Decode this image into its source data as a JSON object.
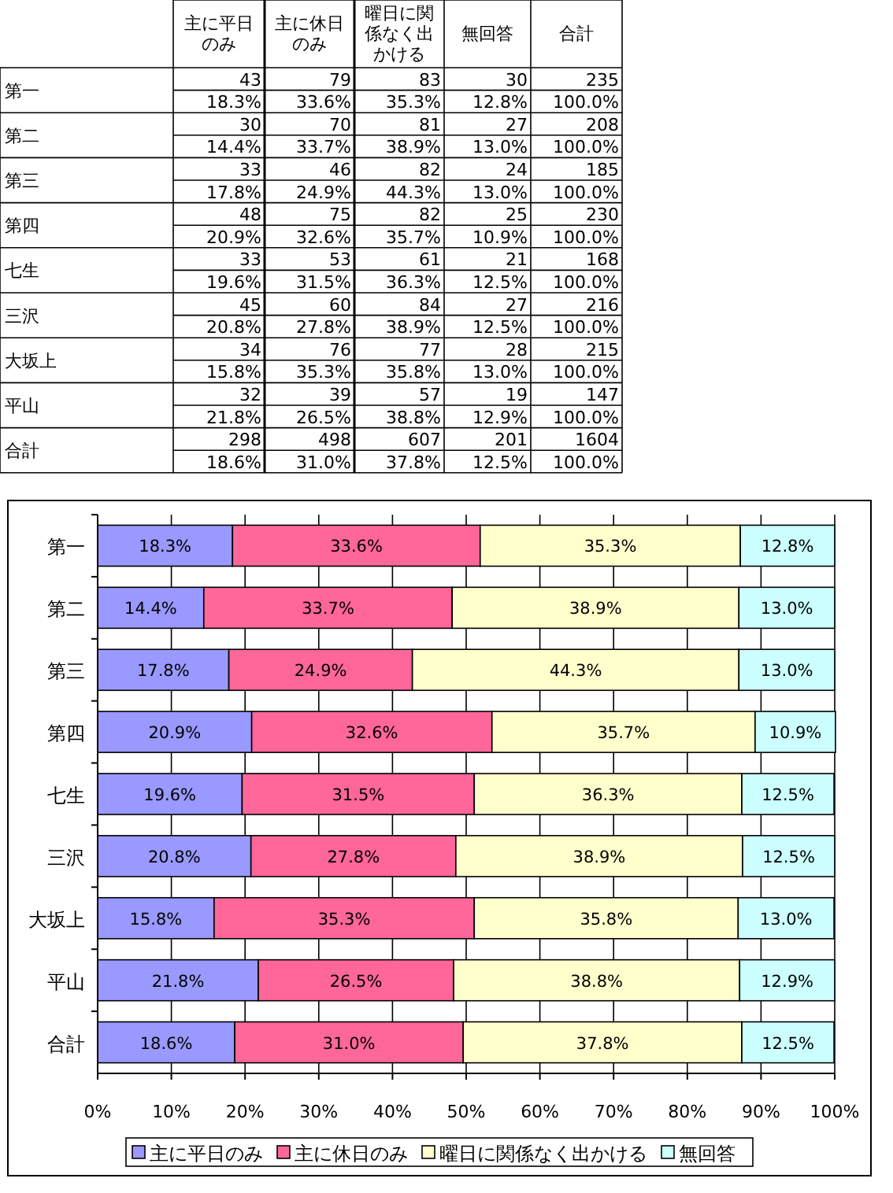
{
  "chart_data": [
    {
      "type": "other",
      "categories": [
        "主に平日のみ",
        "主に休日のみ",
        "曜日に関係なく出かける",
        "無回答",
        "合計"
      ],
      "y_categories": [
        "第一",
        null,
        "第二",
        null,
        "第三",
        null,
        "第四",
        null,
        "七生",
        null,
        "三沢",
        null,
        "大坂上",
        null,
        "平山",
        null,
        "合計",
        null
      ],
      "cell_labels": [
        [
          "43",
          "79",
          "83",
          "30",
          "235"
        ],
        [
          "18.3%",
          "33.6%",
          "35.3%",
          "12.8%",
          "100.0%"
        ],
        [
          "30",
          "70",
          "81",
          "27",
          "208"
        ],
        [
          "14.4%",
          "33.7%",
          "38.9%",
          "13.0%",
          "100.0%"
        ],
        [
          "33",
          "46",
          "82",
          "24",
          "185"
        ],
        [
          "17.8%",
          "24.9%",
          "44.3%",
          "13.0%",
          "100.0%"
        ],
        [
          "48",
          "75",
          "82",
          "25",
          "230"
        ],
        [
          "20.9%",
          "32.6%",
          "35.7%",
          "10.9%",
          "100.0%"
        ],
        [
          "33",
          "53",
          "61",
          "21",
          "168"
        ],
        [
          "19.6%",
          "31.5%",
          "36.3%",
          "12.5%",
          "100.0%"
        ],
        [
          "45",
          "60",
          "84",
          "27",
          "216"
        ],
        [
          "20.8%",
          "27.8%",
          "38.9%",
          "12.5%",
          "100.0%"
        ],
        [
          "34",
          "76",
          "77",
          "28",
          "215"
        ],
        [
          "15.8%",
          "35.3%",
          "35.8%",
          "13.0%",
          "100.0%"
        ],
        [
          "32",
          "39",
          "57",
          "19",
          "147"
        ],
        [
          "21.8%",
          "26.5%",
          "38.8%",
          "12.9%",
          "100.0%"
        ],
        [
          "298",
          "498",
          "607",
          "201",
          "1604"
        ],
        [
          "18.6%",
          "31.0%",
          "37.8%",
          "12.5%",
          "100.0%"
        ]
      ]
    },
    {
      "type": "bar",
      "orientation": "horizontal",
      "stacked": true,
      "categories": [
        "第一",
        "第二",
        "第三",
        "第四",
        "七生",
        "三沢",
        "大坂上",
        "平山",
        "合計"
      ],
      "xlim": [
        0,
        100
      ],
      "xticks": [
        {
          "value": 0,
          "label": "0%"
        },
        {
          "value": 10,
          "label": "10%"
        },
        {
          "value": 20,
          "label": "20%"
        },
        {
          "value": 30,
          "label": "30%"
        },
        {
          "value": 40,
          "label": "40%"
        },
        {
          "value": 50,
          "label": "50%"
        },
        {
          "value": 60,
          "label": "60%"
        },
        {
          "value": 70,
          "label": "70%"
        },
        {
          "value": 80,
          "label": "80%"
        },
        {
          "value": 90,
          "label": "90%"
        },
        {
          "value": 100,
          "label": "100%"
        }
      ],
      "grid": "x",
      "legend": "bottom",
      "series": [
        {
          "name": "主に平日のみ",
          "color": "#9999ff",
          "values": [
            18.3,
            14.4,
            17.8,
            20.9,
            19.6,
            20.8,
            15.8,
            21.8,
            18.6
          ],
          "value_labels": [
            "18.3%",
            "14.4%",
            "17.8%",
            "20.9%",
            "19.6%",
            "20.8%",
            "15.8%",
            "21.8%",
            "18.6%"
          ]
        },
        {
          "name": "主に休日のみ",
          "color": "#ff6699",
          "values": [
            33.6,
            33.7,
            24.9,
            32.6,
            31.5,
            27.8,
            35.3,
            26.5,
            31.0
          ],
          "value_labels": [
            "33.6%",
            "33.7%",
            "24.9%",
            "32.6%",
            "31.5%",
            "27.8%",
            "35.3%",
            "26.5%",
            "31.0%"
          ]
        },
        {
          "name": "曜日に関係なく出かける",
          "color": "#ffffcc",
          "values": [
            35.3,
            38.9,
            44.3,
            35.7,
            36.3,
            38.9,
            35.8,
            38.8,
            37.8
          ],
          "value_labels": [
            "35.3%",
            "38.9%",
            "44.3%",
            "35.7%",
            "36.3%",
            "38.9%",
            "35.8%",
            "38.8%",
            "37.8%"
          ]
        },
        {
          "name": "無回答",
          "color": "#ccffff",
          "values": [
            12.8,
            13.0,
            13.0,
            10.9,
            12.5,
            12.5,
            13.0,
            12.9,
            12.5
          ],
          "value_labels": [
            "12.8%",
            "13.0%",
            "13.0%",
            "10.9%",
            "12.5%",
            "12.5%",
            "13.0%",
            "12.9%",
            "12.5%"
          ]
        }
      ]
    }
  ]
}
